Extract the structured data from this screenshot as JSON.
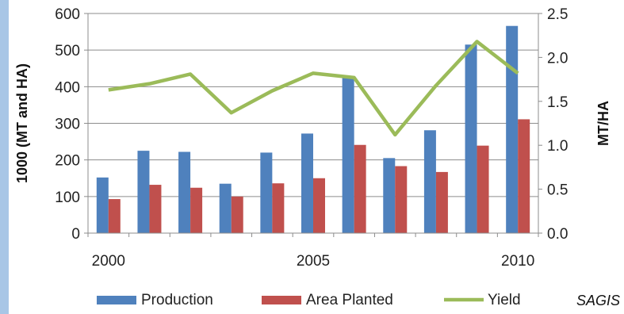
{
  "chart_data": {
    "type": "bar+line",
    "categories": [
      "2000",
      "2001",
      "2002",
      "2003",
      "2004",
      "2005",
      "2006",
      "2007",
      "2008",
      "2009",
      "2010"
    ],
    "x_tick_labels": [
      "2000",
      "2005",
      "2010"
    ],
    "series": [
      {
        "name": "Production",
        "type": "bar",
        "axis": "left",
        "color": "#4f81bd",
        "values": [
          152,
          225,
          222,
          135,
          220,
          272,
          428,
          205,
          281,
          515,
          566
        ]
      },
      {
        "name": "Area Planted",
        "type": "bar",
        "axis": "left",
        "color": "#c0504d",
        "values": [
          93,
          132,
          124,
          100,
          136,
          150,
          241,
          183,
          167,
          239,
          311
        ]
      },
      {
        "name": "Yield",
        "type": "line",
        "axis": "right",
        "color": "#9bbb59",
        "values": [
          1.63,
          1.7,
          1.81,
          1.37,
          1.62,
          1.82,
          1.77,
          1.12,
          1.68,
          2.18,
          1.82
        ]
      }
    ],
    "ylabel": "1000 (MT and HA)",
    "ylim": [
      0,
      600
    ],
    "yticks": [
      0,
      100,
      200,
      300,
      400,
      500,
      600
    ],
    "y2label": "MT/HA",
    "y2lim": [
      0,
      2.5
    ],
    "y2ticks": [
      "0.0",
      "0.5",
      "1.0",
      "1.5",
      "2.0",
      "2.5"
    ],
    "grid": true,
    "legend_position": "bottom",
    "source": "SAGIS"
  }
}
